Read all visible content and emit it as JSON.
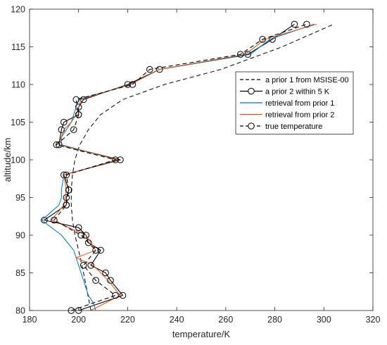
{
  "chart_data": {
    "type": "line",
    "title": "",
    "xlabel": "temperature/K",
    "ylabel": "altitude/km",
    "xlim": [
      180,
      320
    ],
    "ylim": [
      80,
      120
    ],
    "xticks": [
      180,
      200,
      220,
      240,
      260,
      280,
      300,
      320
    ],
    "yticks": [
      80,
      85,
      90,
      95,
      100,
      105,
      110,
      115,
      120
    ],
    "grid": false,
    "legend_position": "upper-right",
    "series": [
      {
        "name": "a prior 1 from MSISE-00",
        "color": "#000000",
        "style": "dashed",
        "marker": "none",
        "x": [
          205,
          202,
          200,
          198.5,
          197.5,
          197,
          197,
          197.5,
          198.5,
          200.5,
          204,
          209,
          218,
          235,
          258,
          283,
          304
        ],
        "y": [
          80,
          85,
          88,
          90,
          92,
          94,
          96,
          98,
          100,
          102,
          104,
          106,
          108,
          110,
          112,
          115,
          118
        ]
      },
      {
        "name": "a prior 2 within 5 K",
        "color": "#000000",
        "style": "solid",
        "marker": "circle",
        "x": [
          200,
          218,
          213,
          211,
          205,
          209,
          204,
          203,
          200,
          186,
          195,
          195,
          196,
          194,
          217,
          192,
          193,
          194,
          200,
          200,
          202,
          220,
          233,
          269,
          279,
          288
        ],
        "y": [
          80,
          82,
          84,
          85,
          86,
          88,
          89,
          90,
          91,
          92,
          94,
          95,
          96,
          98,
          100,
          102,
          104,
          105,
          106,
          107,
          108,
          110,
          112,
          114,
          116,
          118
        ]
      },
      {
        "name": "retrieval from prior 1",
        "color": "#0072BD",
        "style": "solid",
        "marker": "none",
        "x": [
          207,
          206,
          204,
          203,
          202,
          201,
          200,
          199,
          198,
          193,
          185,
          192,
          193,
          193,
          194,
          216,
          193,
          193,
          195,
          197,
          198,
          200,
          221,
          233,
          270,
          278,
          296
        ],
        "y": [
          80,
          81,
          82,
          83,
          84,
          85,
          86,
          87,
          88,
          90,
          92,
          94,
          95,
          96,
          98,
          100,
          102,
          103,
          104,
          105,
          106,
          108,
          110,
          112,
          114,
          116,
          118
        ]
      },
      {
        "name": "retrieval from prior 2",
        "color": "#D95319",
        "style": "solid",
        "marker": "none",
        "x": [
          205,
          217,
          212,
          206,
          199,
          207,
          203,
          189,
          194,
          195,
          194,
          216,
          192,
          194,
          197,
          199,
          201,
          221,
          233,
          268,
          276,
          297
        ],
        "y": [
          80,
          82,
          84,
          86,
          87,
          88,
          90,
          92,
          94,
          96,
          98,
          100,
          102,
          104,
          105,
          106,
          108,
          110,
          112,
          114,
          116,
          118
        ]
      },
      {
        "name": "true temperature",
        "color": "#000000",
        "style": "dashed",
        "marker": "circle",
        "x": [
          197,
          215,
          207,
          202,
          207,
          201,
          190,
          195,
          196,
          195,
          215,
          191,
          198,
          200,
          199,
          222,
          229,
          266,
          275,
          293
        ],
        "y": [
          80,
          82,
          84,
          86,
          88,
          90,
          92,
          94,
          96,
          98,
          100,
          102,
          104,
          106,
          108,
          110,
          112,
          114,
          116,
          118
        ]
      }
    ]
  }
}
